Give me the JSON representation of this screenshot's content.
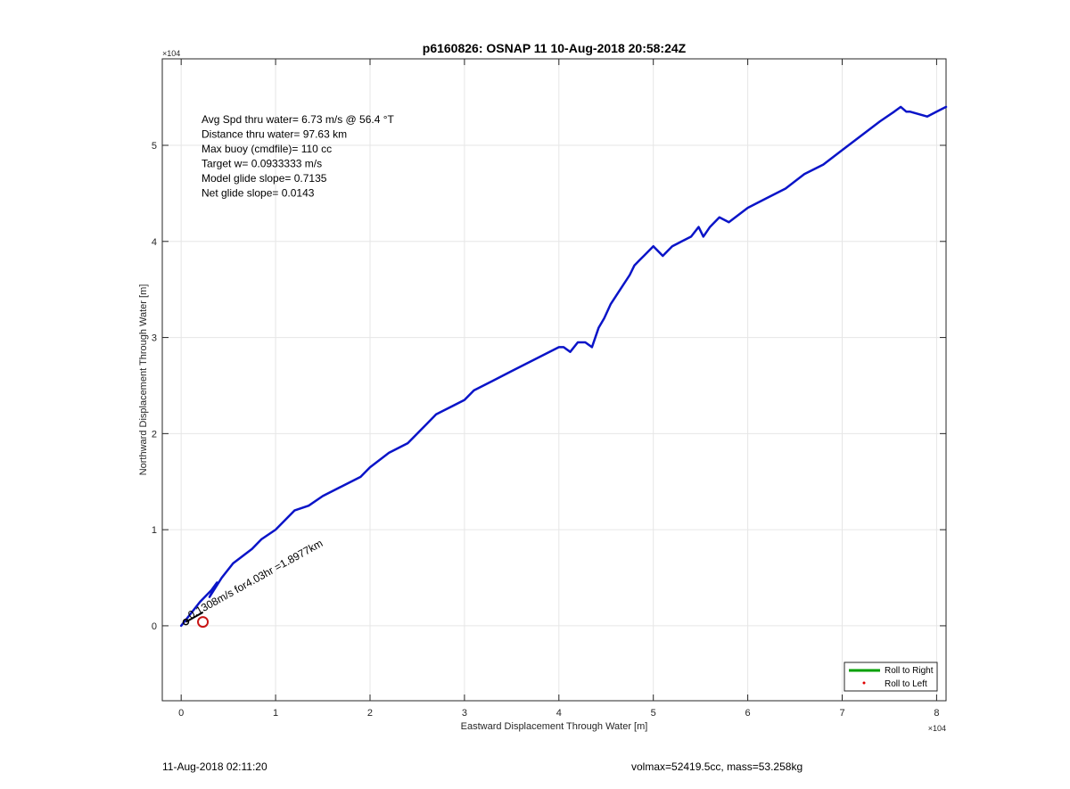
{
  "chart_data": {
    "type": "line",
    "title": "p6160826: OSNAP 11 10-Aug-2018 20:58:24Z",
    "xlabel": "Eastward Displacement Through Water [m]",
    "ylabel": "Northward Displacement Through Water [m]",
    "xlim": [
      -2000,
      81000
    ],
    "ylim": [
      -7800,
      59000
    ],
    "axis_scale_label": "×10^4",
    "xticks": [
      0,
      10000,
      20000,
      30000,
      40000,
      50000,
      60000,
      70000,
      80000
    ],
    "xtick_labels": [
      "0",
      "1",
      "2",
      "3",
      "4",
      "5",
      "6",
      "7",
      "8"
    ],
    "yticks": [
      0,
      10000,
      20000,
      30000,
      40000,
      50000
    ],
    "ytick_labels": [
      "0",
      "1",
      "2",
      "3",
      "4",
      "5"
    ],
    "grid": true,
    "annotations": [
      "Avg Spd thru water=  6.73 m/s @  56.4 °T",
      "Distance thru water= 97.63 km",
      "Max buoy (cmdfile)= 110 cc",
      "Target w= 0.0933333 m/s",
      "Model glide slope= 0.7135",
      "Net glide slope= 0.0143"
    ],
    "current_label": "0.1308m/s for4.03hr =1.8977km",
    "legend": {
      "position": "bottom-right",
      "entries": [
        "Roll to Right",
        "Roll to Left"
      ],
      "colors": [
        "#00a000",
        "#e00000"
      ]
    },
    "series": [
      {
        "color": "#0a14c8",
        "x": [
          0,
          2000,
          3200,
          3800,
          3000,
          4300,
          5500,
          7500,
          8500,
          10000,
          11000,
          12000,
          13500,
          15000,
          17000,
          19000,
          20000,
          22000,
          24000,
          25000,
          26000,
          27000,
          28000,
          30000,
          31000,
          33000,
          35000,
          37000,
          39000,
          40000,
          40500,
          41200,
          42000,
          42800,
          43500,
          44200,
          44800,
          45500,
          46500,
          47500,
          48000,
          48500,
          49000,
          50000,
          51000,
          52000,
          53000,
          54000,
          54800,
          55300,
          56000,
          57000,
          58000,
          60000,
          62000,
          64000,
          66000,
          68000,
          70000,
          72000,
          74000,
          75500,
          76200,
          76800,
          77200,
          79000,
          80000,
          81000
        ],
        "y": [
          0,
          2500,
          3700,
          4500,
          3000,
          5000,
          6500,
          8000,
          9000,
          10000,
          11000,
          12000,
          12500,
          13500,
          14500,
          15500,
          16500,
          18000,
          19000,
          20000,
          21000,
          22000,
          22500,
          23500,
          24500,
          25500,
          26500,
          27500,
          28500,
          29000,
          29000,
          28500,
          29500,
          29500,
          29000,
          31000,
          32000,
          33500,
          35000,
          36500,
          37500,
          38000,
          38500,
          39500,
          38500,
          39500,
          40000,
          40500,
          41500,
          40500,
          41500,
          42500,
          42000,
          43500,
          44500,
          45500,
          47000,
          48000,
          49500,
          51000,
          52500,
          53500,
          54000,
          53500,
          53500,
          53000,
          53500,
          54000
        ]
      }
    ]
  },
  "footer": {
    "timestamp": "11-Aug-2018 02:11:20",
    "volume_mass": "volmax=52419.5cc, mass=53.258kg"
  }
}
